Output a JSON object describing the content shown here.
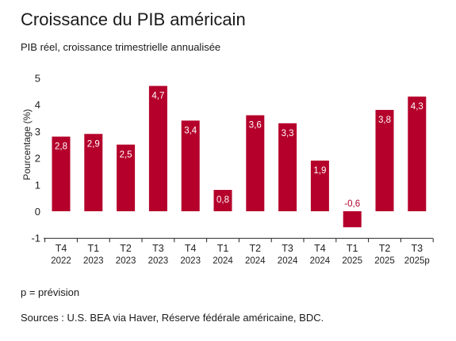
{
  "title": "Croissance du PIB américain",
  "subtitle": "PIB réel, croissance trimestrielle annualisée",
  "note": "p = prévision",
  "sources": "Sources : U.S. BEA via Haver, Réserve fédérale américaine, BDC.",
  "colors": {
    "bar": "#b5002b",
    "label_inside": "#ffffff",
    "label_negative": "#b5002b"
  },
  "chart_data": {
    "type": "bar",
    "ylabel": "Pourcentage (%)",
    "ylim": [
      -1,
      5
    ],
    "yticks": [
      "-1",
      "0",
      "1",
      "2",
      "3",
      "4",
      "5"
    ],
    "grid": false,
    "categories": [
      {
        "q": "T4",
        "y": "2022"
      },
      {
        "q": "T1",
        "y": "2023"
      },
      {
        "q": "T2",
        "y": "2023"
      },
      {
        "q": "T3",
        "y": "2023"
      },
      {
        "q": "T4",
        "y": "2023"
      },
      {
        "q": "T1",
        "y": "2024"
      },
      {
        "q": "T2",
        "y": "2024"
      },
      {
        "q": "T3",
        "y": "2024"
      },
      {
        "q": "T4",
        "y": "2024"
      },
      {
        "q": "T1",
        "y": "2025"
      },
      {
        "q": "T2",
        "y": "2025"
      },
      {
        "q": "T3",
        "y": "2025p"
      }
    ],
    "values": [
      2.8,
      2.9,
      2.5,
      4.7,
      3.4,
      0.8,
      3.6,
      3.3,
      1.9,
      -0.6,
      3.8,
      4.3
    ],
    "value_labels": [
      "2,8",
      "2,9",
      "2,5",
      "4,7",
      "3,4",
      "0,8",
      "3,6",
      "3,3",
      "1,9",
      "-0,6",
      "3,8",
      "4,3"
    ]
  }
}
